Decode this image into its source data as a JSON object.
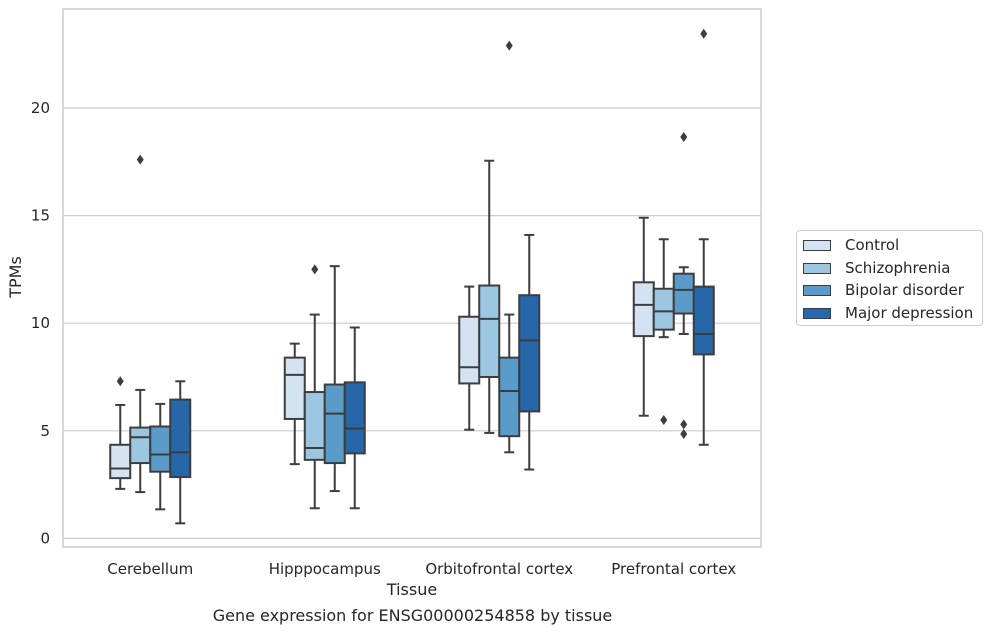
{
  "chart_data": {
    "type": "box",
    "xlabel": "Tissue",
    "ylabel": "TPMs",
    "ylim": [
      -0.4,
      24.6
    ],
    "yticks": [
      0,
      5,
      10,
      15,
      20
    ],
    "grid": "horizontal",
    "legend_position": "right",
    "categories": [
      "Cerebellum",
      "Hipppocampus",
      "Orbitofrontal cortex",
      "Prefrontal cortex"
    ],
    "series": [
      {
        "name": "Control",
        "color": "#d3e3f2",
        "boxes": [
          {
            "whisker_low": 2.3,
            "q1": 2.8,
            "median": 3.25,
            "q3": 4.35,
            "whisker_high": 6.2,
            "outliers": [
              7.3
            ]
          },
          {
            "whisker_low": 3.45,
            "q1": 5.55,
            "median": 7.6,
            "q3": 8.4,
            "whisker_high": 9.05,
            "outliers": []
          },
          {
            "whisker_low": 5.05,
            "q1": 7.2,
            "median": 7.95,
            "q3": 10.3,
            "whisker_high": 11.7,
            "outliers": []
          },
          {
            "whisker_low": 5.7,
            "q1": 9.4,
            "median": 10.85,
            "q3": 11.9,
            "whisker_high": 14.9,
            "outliers": []
          }
        ]
      },
      {
        "name": "Schizophrenia",
        "color": "#9dc7e0",
        "boxes": [
          {
            "whisker_low": 2.15,
            "q1": 3.5,
            "median": 4.7,
            "q3": 5.15,
            "whisker_high": 6.9,
            "outliers": [
              17.6
            ]
          },
          {
            "whisker_low": 1.4,
            "q1": 3.65,
            "median": 4.2,
            "q3": 6.8,
            "whisker_high": 10.4,
            "outliers": [
              12.5
            ]
          },
          {
            "whisker_low": 4.9,
            "q1": 7.5,
            "median": 10.2,
            "q3": 11.75,
            "whisker_high": 17.55,
            "outliers": []
          },
          {
            "whisker_low": 9.35,
            "q1": 9.7,
            "median": 10.55,
            "q3": 11.6,
            "whisker_high": 13.9,
            "outliers": [
              5.5
            ]
          }
        ]
      },
      {
        "name": "Bipolar disorder",
        "color": "#5b9bc9",
        "boxes": [
          {
            "whisker_low": 1.35,
            "q1": 3.1,
            "median": 3.9,
            "q3": 5.2,
            "whisker_high": 6.25,
            "outliers": []
          },
          {
            "whisker_low": 2.2,
            "q1": 3.5,
            "median": 5.8,
            "q3": 7.15,
            "whisker_high": 12.65,
            "outliers": []
          },
          {
            "whisker_low": 4.0,
            "q1": 4.75,
            "median": 6.85,
            "q3": 8.4,
            "whisker_high": 10.4,
            "outliers": [
              22.9
            ]
          },
          {
            "whisker_low": 9.5,
            "q1": 10.45,
            "median": 11.55,
            "q3": 12.3,
            "whisker_high": 12.6,
            "outliers": [
              18.65,
              5.3,
              4.85
            ]
          }
        ]
      },
      {
        "name": "Major depression",
        "color": "#2667a9",
        "boxes": [
          {
            "whisker_low": 0.7,
            "q1": 2.85,
            "median": 4.0,
            "q3": 6.45,
            "whisker_high": 7.3,
            "outliers": []
          },
          {
            "whisker_low": 1.4,
            "q1": 3.95,
            "median": 5.1,
            "q3": 7.25,
            "whisker_high": 9.8,
            "outliers": []
          },
          {
            "whisker_low": 3.2,
            "q1": 5.9,
            "median": 9.2,
            "q3": 11.3,
            "whisker_high": 14.1,
            "outliers": []
          },
          {
            "whisker_low": 4.35,
            "q1": 8.55,
            "median": 9.5,
            "q3": 11.7,
            "whisker_high": 13.9,
            "outliers": [
              23.45
            ]
          }
        ]
      }
    ]
  },
  "caption": "Gene expression for ENSG00000254858 by tissue",
  "legend": {
    "items": [
      {
        "label": "Control",
        "color": "#d3e3f2"
      },
      {
        "label": "Schizophrenia",
        "color": "#9dc7e0"
      },
      {
        "label": "Bipolar disorder",
        "color": "#5b9bc9"
      },
      {
        "label": "Major depression",
        "color": "#2667a9"
      }
    ]
  }
}
